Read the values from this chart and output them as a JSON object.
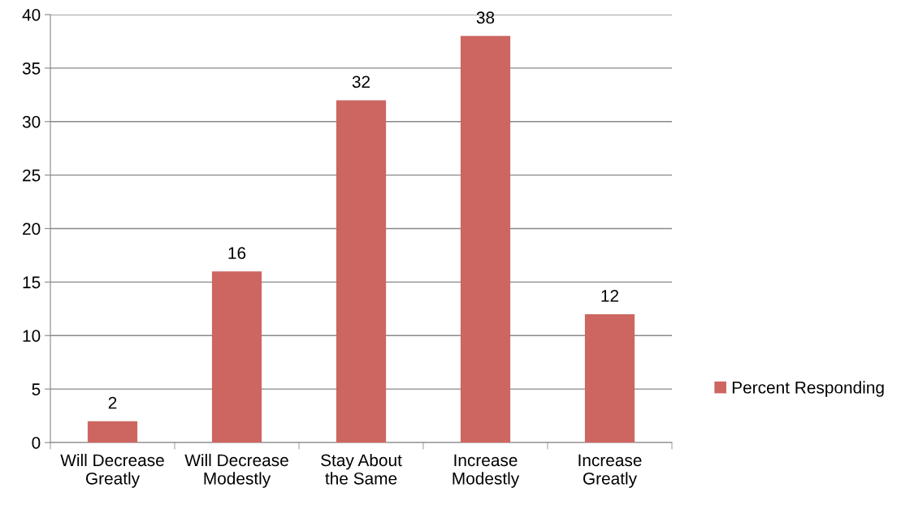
{
  "chart_data": {
    "type": "bar",
    "categories": [
      "Will Decrease Greatly",
      "Will Decrease Modestly",
      "Stay About the Same",
      "Increase Modestly",
      "Increase Greatly"
    ],
    "series": [
      {
        "name": "Percent Responding",
        "color": "#cd6660",
        "values": [
          2,
          16,
          32,
          38,
          12
        ]
      }
    ],
    "ylim": [
      0,
      40
    ],
    "yticks": [
      0,
      5,
      10,
      15,
      20,
      25,
      30,
      35,
      40
    ],
    "grid": "y",
    "legend": "right",
    "data_labels": true
  }
}
